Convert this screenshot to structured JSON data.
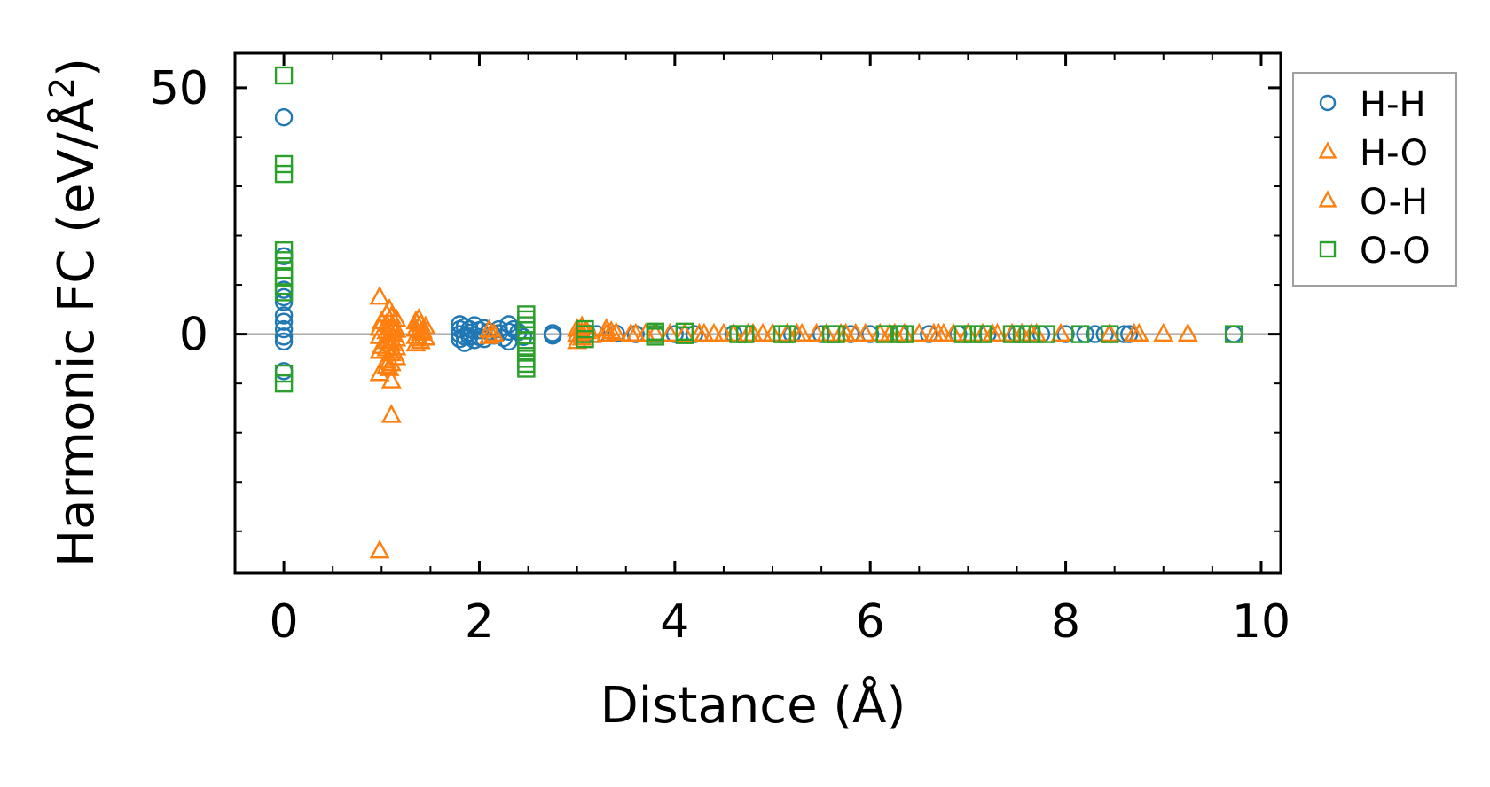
{
  "chart_data": {
    "type": "scatter",
    "title": "",
    "xlabel": "Distance (Å)",
    "ylabel_main": "Harmonic FC (eV/Å",
    "ylabel_sup": "2",
    "ylabel_close": ")",
    "xlim": [
      -0.5,
      10.2
    ],
    "ylim": [
      -48.5,
      57
    ],
    "x_ticks": [
      0,
      2,
      4,
      6,
      8,
      10
    ],
    "x_tick_labels": [
      "0",
      "2",
      "4",
      "6",
      "8",
      "10"
    ],
    "x_minor_ticks": [
      -0.5,
      0.5,
      1,
      1.5,
      2.5,
      3,
      3.5,
      4.5,
      5,
      5.5,
      6.5,
      7,
      7.5,
      8.5,
      9,
      9.5
    ],
    "y_ticks": [
      0,
      50
    ],
    "y_tick_labels": [
      "0",
      "50"
    ],
    "y_minor_ticks": [
      -40,
      -30,
      -20,
      -10,
      10,
      20,
      30,
      40
    ],
    "zero_line": true,
    "grid": false,
    "legend_position": "outside-right-top",
    "series": [
      {
        "name": "H-H",
        "marker": "circle",
        "color": "#1f77b4",
        "points": [
          [
            0,
            44
          ],
          [
            0,
            15.8
          ],
          [
            0,
            9
          ],
          [
            0,
            7.5
          ],
          [
            0,
            6.5
          ],
          [
            0,
            3.8
          ],
          [
            0,
            2.5
          ],
          [
            0,
            1
          ],
          [
            0,
            -0.5
          ],
          [
            0,
            -1.5
          ],
          [
            0,
            -7.5
          ],
          [
            1.8,
            2
          ],
          [
            1.8,
            1
          ],
          [
            1.8,
            0
          ],
          [
            1.8,
            -1
          ],
          [
            1.85,
            1.5
          ],
          [
            1.85,
            -0.5
          ],
          [
            1.85,
            -1.8
          ],
          [
            1.9,
            1
          ],
          [
            1.9,
            0.3
          ],
          [
            1.9,
            -0.5
          ],
          [
            1.95,
            1.8
          ],
          [
            1.95,
            -1.2
          ],
          [
            2.0,
            0.8
          ],
          [
            2.0,
            -0.6
          ],
          [
            2.05,
            1.2
          ],
          [
            2.05,
            -1
          ],
          [
            2.1,
            0.5
          ],
          [
            2.15,
            -0.3
          ],
          [
            2.2,
            1
          ],
          [
            2.2,
            0.2
          ],
          [
            2.25,
            -0.8
          ],
          [
            2.3,
            2
          ],
          [
            2.3,
            0.5
          ],
          [
            2.3,
            -1.5
          ],
          [
            2.35,
            1
          ],
          [
            2.4,
            0.4
          ],
          [
            2.45,
            -0.6
          ],
          [
            2.75,
            0.2
          ],
          [
            2.75,
            -0.3
          ],
          [
            3.1,
            0.2
          ],
          [
            3.2,
            0
          ],
          [
            3.4,
            0.1
          ],
          [
            3.6,
            0
          ],
          [
            3.8,
            0.1
          ],
          [
            4.0,
            0
          ],
          [
            4.2,
            0
          ],
          [
            4.6,
            0.05
          ],
          [
            5.2,
            0
          ],
          [
            5.5,
            0
          ],
          [
            5.8,
            0
          ],
          [
            6.0,
            0
          ],
          [
            6.3,
            0
          ],
          [
            6.6,
            0
          ],
          [
            6.9,
            0
          ],
          [
            7.2,
            0
          ],
          [
            7.5,
            0
          ],
          [
            7.75,
            0
          ],
          [
            8.0,
            0
          ],
          [
            8.2,
            0
          ],
          [
            8.3,
            0
          ],
          [
            8.4,
            0
          ],
          [
            8.6,
            0
          ],
          [
            8.65,
            0
          ],
          [
            9.72,
            0
          ]
        ]
      },
      {
        "name": "H-O",
        "marker": "triangle",
        "color": "#ff7f0e",
        "points": [
          [
            0.98,
            7.5
          ],
          [
            0.98,
            1.2
          ],
          [
            0.98,
            -0.5
          ],
          [
            0.98,
            -3.5
          ],
          [
            0.98,
            -8
          ],
          [
            0.98,
            -44
          ],
          [
            1.05,
            4
          ],
          [
            1.05,
            2
          ],
          [
            1.05,
            0.5
          ],
          [
            1.05,
            -1.5
          ],
          [
            1.05,
            -3
          ],
          [
            1.05,
            -5.5
          ],
          [
            1.05,
            -6.5
          ],
          [
            1.1,
            3.5
          ],
          [
            1.1,
            1.5
          ],
          [
            1.1,
            0
          ],
          [
            1.1,
            -2
          ],
          [
            1.1,
            -4
          ],
          [
            1.1,
            -6
          ],
          [
            1.1,
            -9.5
          ],
          [
            1.1,
            -16.5
          ],
          [
            1.15,
            3
          ],
          [
            1.15,
            0.8
          ],
          [
            1.15,
            -1
          ],
          [
            1.15,
            -2.8
          ],
          [
            1.15,
            -4.8
          ],
          [
            1.35,
            2.5
          ],
          [
            1.35,
            1
          ],
          [
            1.35,
            -0.5
          ],
          [
            1.35,
            -2
          ],
          [
            1.4,
            2
          ],
          [
            1.4,
            0.2
          ],
          [
            1.4,
            -1.5
          ],
          [
            1.45,
            1.5
          ],
          [
            1.45,
            -0.8
          ],
          [
            2.1,
            0.8
          ],
          [
            2.1,
            -0.5
          ],
          [
            2.15,
            0
          ],
          [
            3.0,
            1
          ],
          [
            3.0,
            0
          ],
          [
            3.0,
            -1.5
          ],
          [
            3.05,
            1.5
          ],
          [
            3.05,
            -0.8
          ],
          [
            3.1,
            0.5
          ],
          [
            3.15,
            -0.3
          ],
          [
            3.3,
            1
          ],
          [
            3.3,
            0
          ],
          [
            3.4,
            0.2
          ],
          [
            3.55,
            0
          ],
          [
            3.6,
            0
          ],
          [
            3.8,
            0.1
          ],
          [
            3.95,
            0
          ],
          [
            4.1,
            0
          ],
          [
            4.3,
            0
          ],
          [
            4.4,
            0
          ],
          [
            4.5,
            0
          ],
          [
            4.6,
            0
          ],
          [
            4.8,
            0
          ],
          [
            4.9,
            0
          ],
          [
            5.0,
            0
          ],
          [
            5.15,
            0
          ],
          [
            5.3,
            0
          ],
          [
            5.45,
            0
          ],
          [
            5.55,
            0
          ],
          [
            5.7,
            0
          ],
          [
            5.85,
            0
          ],
          [
            5.95,
            0
          ],
          [
            6.1,
            0
          ],
          [
            6.25,
            0
          ],
          [
            6.35,
            0
          ],
          [
            6.5,
            0
          ],
          [
            6.65,
            0
          ],
          [
            6.75,
            0
          ],
          [
            6.85,
            0
          ],
          [
            7.0,
            0
          ],
          [
            7.15,
            0
          ],
          [
            7.3,
            0
          ],
          [
            7.45,
            0
          ],
          [
            7.55,
            0
          ],
          [
            7.7,
            0
          ],
          [
            7.95,
            0
          ],
          [
            8.45,
            0
          ],
          [
            8.7,
            0
          ],
          [
            8.75,
            0
          ],
          [
            9.0,
            0
          ],
          [
            9.25,
            0
          ]
        ]
      },
      {
        "name": "O-H",
        "marker": "triangle",
        "color": "#ff7f0e",
        "points": [
          [
            1.0,
            2.5
          ],
          [
            1.0,
            -2.5
          ],
          [
            1.08,
            5
          ],
          [
            1.08,
            -7
          ],
          [
            1.12,
            1
          ],
          [
            1.12,
            -3.5
          ],
          [
            1.38,
            3
          ],
          [
            1.38,
            -1
          ],
          [
            1.42,
            0.6
          ],
          [
            3.05,
            0.3
          ],
          [
            3.35,
            0.5
          ],
          [
            3.7,
            0
          ],
          [
            4.25,
            0
          ],
          [
            4.75,
            0
          ],
          [
            5.25,
            0
          ],
          [
            5.75,
            0
          ],
          [
            6.2,
            0
          ],
          [
            6.7,
            0
          ],
          [
            7.25,
            0
          ],
          [
            7.65,
            0
          ]
        ]
      },
      {
        "name": "O-O",
        "marker": "square",
        "color": "#2ca02c",
        "points": [
          [
            0,
            52.5
          ],
          [
            0,
            34.5
          ],
          [
            0,
            32.5
          ],
          [
            0,
            17
          ],
          [
            0,
            15
          ],
          [
            0,
            13
          ],
          [
            0,
            11.5
          ],
          [
            0,
            9.8
          ],
          [
            0,
            8.5
          ],
          [
            0,
            -8
          ],
          [
            0,
            -10
          ],
          [
            2.48,
            4
          ],
          [
            2.48,
            3
          ],
          [
            2.48,
            1.8
          ],
          [
            2.48,
            0.8
          ],
          [
            2.48,
            -0.2
          ],
          [
            2.48,
            -1.2
          ],
          [
            2.48,
            -2.5
          ],
          [
            2.48,
            -3.5
          ],
          [
            2.48,
            -5
          ],
          [
            2.48,
            -6
          ],
          [
            2.48,
            -7
          ],
          [
            3.08,
            1
          ],
          [
            3.08,
            0
          ],
          [
            3.08,
            -1
          ],
          [
            3.8,
            0.5
          ],
          [
            3.8,
            0
          ],
          [
            3.8,
            -0.5
          ],
          [
            4.1,
            0.5
          ],
          [
            4.1,
            -0.2
          ],
          [
            4.65,
            0
          ],
          [
            4.72,
            0
          ],
          [
            5.1,
            0
          ],
          [
            5.15,
            0
          ],
          [
            5.6,
            0
          ],
          [
            5.65,
            0
          ],
          [
            6.15,
            0
          ],
          [
            6.3,
            0
          ],
          [
            6.35,
            0
          ],
          [
            6.95,
            0
          ],
          [
            7.05,
            0
          ],
          [
            7.15,
            0
          ],
          [
            7.45,
            0
          ],
          [
            7.55,
            0
          ],
          [
            7.65,
            0
          ],
          [
            7.8,
            0
          ],
          [
            8.15,
            0
          ],
          [
            8.45,
            0
          ],
          [
            9.72,
            0
          ]
        ]
      }
    ]
  },
  "colors": {
    "axis": "#000000",
    "zero_line": "#808080",
    "legend_border": "#a0a0a0"
  }
}
